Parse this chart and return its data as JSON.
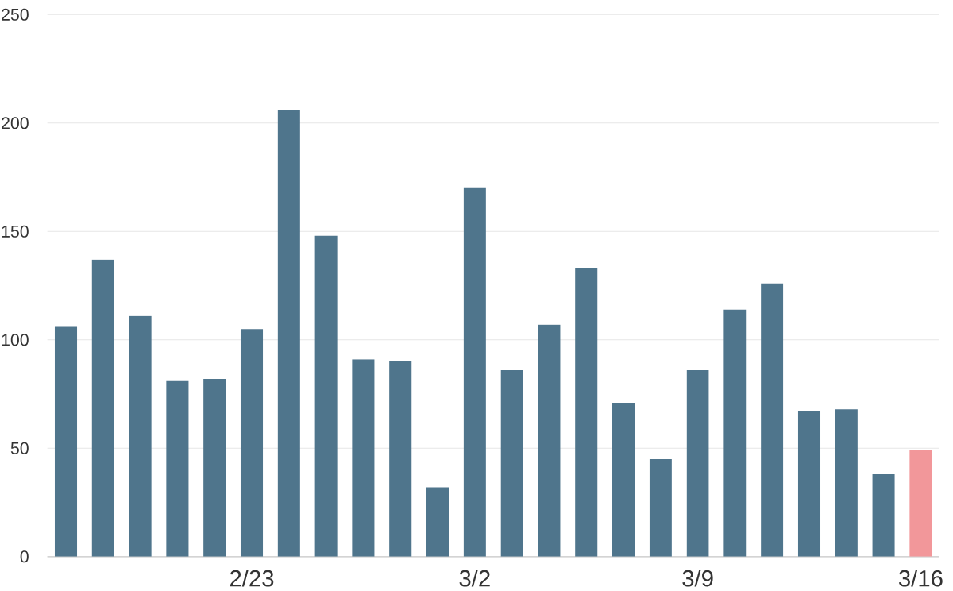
{
  "chart_data": {
    "type": "bar",
    "categories": [
      null,
      null,
      null,
      null,
      null,
      "2/23",
      null,
      null,
      null,
      null,
      null,
      "3/2",
      null,
      null,
      null,
      null,
      null,
      "3/9",
      null,
      null,
      null,
      null,
      null,
      "3/16"
    ],
    "values": [
      106,
      137,
      111,
      81,
      82,
      105,
      206,
      148,
      91,
      90,
      32,
      170,
      86,
      107,
      133,
      71,
      45,
      86,
      114,
      126,
      67,
      68,
      38,
      49
    ],
    "colors": [
      "#4f758c",
      "#4f758c",
      "#4f758c",
      "#4f758c",
      "#4f758c",
      "#4f758c",
      "#4f758c",
      "#4f758c",
      "#4f758c",
      "#4f758c",
      "#4f758c",
      "#4f758c",
      "#4f758c",
      "#4f758c",
      "#4f758c",
      "#4f758c",
      "#4f758c",
      "#4f758c",
      "#4f758c",
      "#4f758c",
      "#4f758c",
      "#4f758c",
      "#4f758c",
      "#f2979a"
    ],
    "ylim": [
      0,
      250
    ],
    "yticks": [
      0,
      50,
      100,
      150,
      200,
      250
    ],
    "grid": "y"
  }
}
